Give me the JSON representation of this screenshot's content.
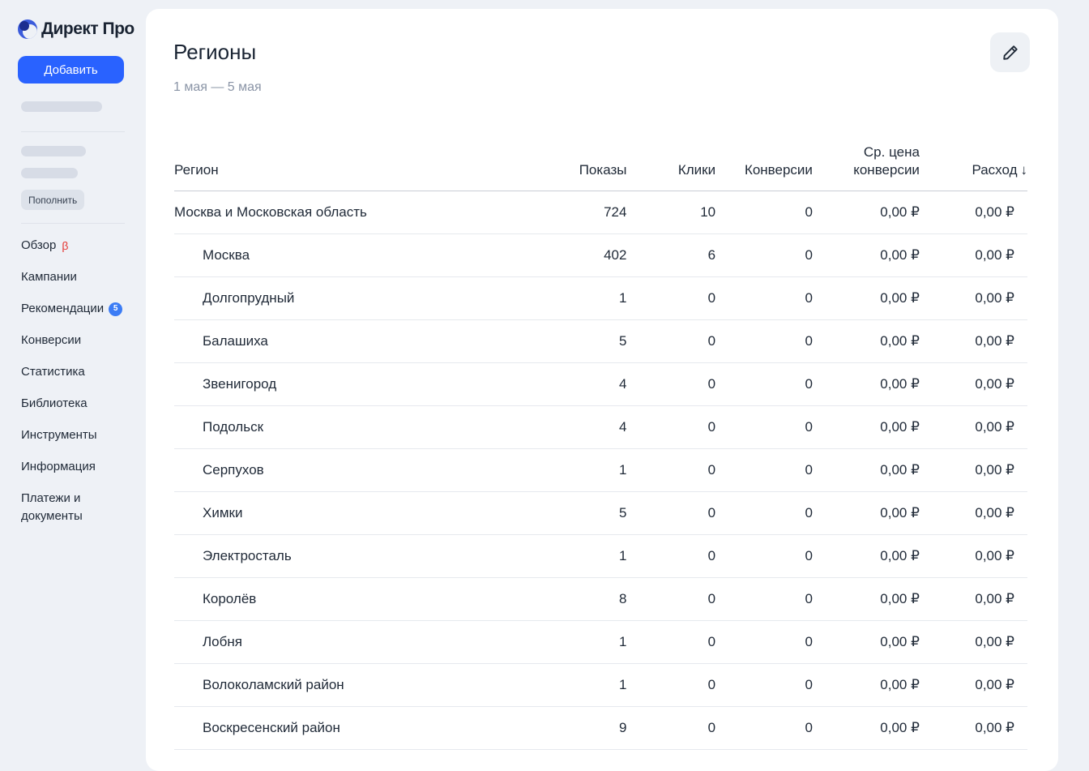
{
  "sidebar": {
    "logo_text": "Директ Про",
    "add_button": "Добавить",
    "refill_button": "Пополнить",
    "nav": [
      {
        "label": "Обзор",
        "beta": "β"
      },
      {
        "label": "Кампании"
      },
      {
        "label": "Рекомендации",
        "badge": "5"
      },
      {
        "label": "Конверсии"
      },
      {
        "label": "Статистика"
      },
      {
        "label": "Библиотека"
      },
      {
        "label": "Инструменты"
      },
      {
        "label": "Информация"
      },
      {
        "label": "Платежи и документы"
      }
    ]
  },
  "main": {
    "title": "Регионы",
    "date_range": "1 мая — 5 мая",
    "table": {
      "headers": {
        "region": "Регион",
        "shows": "Показы",
        "clicks": "Клики",
        "conversions": "Конверсии",
        "avg_price_line1": "Ср. цена",
        "avg_price_line2": "конверсии",
        "spend": "Расход",
        "sort_arrow": "↓"
      },
      "rows": [
        {
          "region": "Москва и Московская область",
          "level": 0,
          "shows": "724",
          "clicks": "10",
          "conversions": "0",
          "avg_price": "0,00 ₽",
          "spend": "0,00 ₽"
        },
        {
          "region": "Москва",
          "level": 1,
          "shows": "402",
          "clicks": "6",
          "conversions": "0",
          "avg_price": "0,00 ₽",
          "spend": "0,00 ₽"
        },
        {
          "region": "Долгопрудный",
          "level": 1,
          "shows": "1",
          "clicks": "0",
          "conversions": "0",
          "avg_price": "0,00 ₽",
          "spend": "0,00 ₽"
        },
        {
          "region": "Балашиха",
          "level": 1,
          "shows": "5",
          "clicks": "0",
          "conversions": "0",
          "avg_price": "0,00 ₽",
          "spend": "0,00 ₽"
        },
        {
          "region": "Звенигород",
          "level": 1,
          "shows": "4",
          "clicks": "0",
          "conversions": "0",
          "avg_price": "0,00 ₽",
          "spend": "0,00 ₽"
        },
        {
          "region": "Подольск",
          "level": 1,
          "shows": "4",
          "clicks": "0",
          "conversions": "0",
          "avg_price": "0,00 ₽",
          "spend": "0,00 ₽"
        },
        {
          "region": "Серпухов",
          "level": 1,
          "shows": "1",
          "clicks": "0",
          "conversions": "0",
          "avg_price": "0,00 ₽",
          "spend": "0,00 ₽"
        },
        {
          "region": "Химки",
          "level": 1,
          "shows": "5",
          "clicks": "0",
          "conversions": "0",
          "avg_price": "0,00 ₽",
          "spend": "0,00 ₽"
        },
        {
          "region": "Электросталь",
          "level": 1,
          "shows": "1",
          "clicks": "0",
          "conversions": "0",
          "avg_price": "0,00 ₽",
          "spend": "0,00 ₽"
        },
        {
          "region": "Королёв",
          "level": 1,
          "shows": "8",
          "clicks": "0",
          "conversions": "0",
          "avg_price": "0,00 ₽",
          "spend": "0,00 ₽"
        },
        {
          "region": "Лобня",
          "level": 1,
          "shows": "1",
          "clicks": "0",
          "conversions": "0",
          "avg_price": "0,00 ₽",
          "spend": "0,00 ₽"
        },
        {
          "region": "Волоколамский район",
          "level": 1,
          "shows": "1",
          "clicks": "0",
          "conversions": "0",
          "avg_price": "0,00 ₽",
          "spend": "0,00 ₽"
        },
        {
          "region": "Воскресенский район",
          "level": 1,
          "shows": "9",
          "clicks": "0",
          "conversions": "0",
          "avg_price": "0,00 ₽",
          "spend": "0,00 ₽"
        }
      ]
    }
  },
  "icons": {
    "logo": "logo-icon",
    "edit": "pencil-icon"
  },
  "colors": {
    "accent": "#2962ff",
    "badge": "#3b7cf5",
    "beta": "#e53935"
  }
}
